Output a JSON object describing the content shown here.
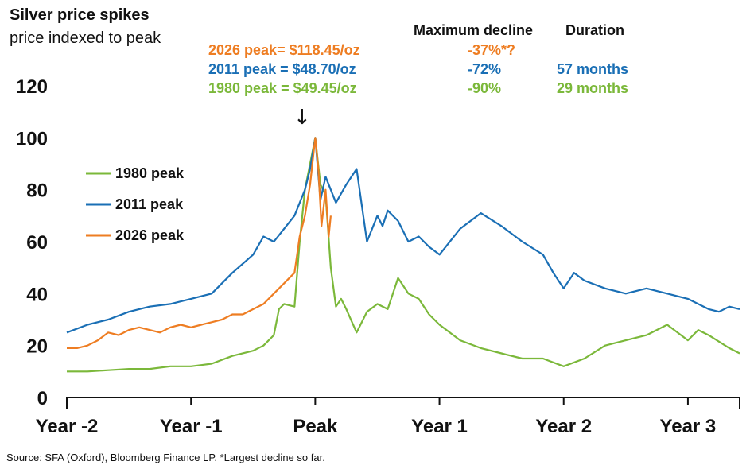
{
  "chart_data": {
    "type": "line",
    "title": "Silver price spikes",
    "subtitle": "price indexed to peak",
    "xlabel": "",
    "ylabel": "",
    "ylim": [
      0,
      120
    ],
    "xlim": [
      -24,
      41
    ],
    "x_unit": "months from peak",
    "y_ticks": [
      "0",
      "20",
      "40",
      "60",
      "80",
      "100",
      "120"
    ],
    "x_ticks": [
      {
        "label": "Year -2",
        "month": -24
      },
      {
        "label": "Year -1",
        "month": -12
      },
      {
        "label": "Peak",
        "month": 0
      },
      {
        "label": "Year 1",
        "month": 12
      },
      {
        "label": "Year 2",
        "month": 24
      },
      {
        "label": "Year 3",
        "month": 36
      }
    ],
    "grid": false,
    "legend": {
      "placement": "left",
      "entries": [
        "1980 peak",
        "2011 peak",
        "2026 peak"
      ]
    },
    "table_headers": {
      "decline": "Maximum decline",
      "duration": "Duration"
    },
    "peak_rows": [
      {
        "label": "2026 peak=  $118.45/oz",
        "decline": "-37%*?",
        "duration": "",
        "color": "#ee7d22"
      },
      {
        "label": "2011 peak = $48.70/oz",
        "decline": "-72%",
        "duration": "57 months",
        "color": "#1a6fb5"
      },
      {
        "label": "1980 peak = $49.45/oz",
        "decline": "-90%",
        "duration": "29 months",
        "color": "#7bb83a"
      }
    ],
    "annotation": "↓",
    "source": "Source: SFA (Oxford), Bloomberg Finance LP. *Largest decline so far.",
    "series": [
      {
        "name": "1980 peak",
        "color": "#7bb83a",
        "x": [
          -24,
          -22,
          -20,
          -18,
          -16,
          -14,
          -12,
          -10,
          -8,
          -6,
          -5,
          -4,
          -3.5,
          -3,
          -2,
          -1.5,
          -1,
          -0.5,
          0,
          0.5,
          1,
          1.5,
          2,
          2.5,
          3,
          4,
          5,
          6,
          7,
          8,
          9,
          10,
          11,
          12,
          14,
          16,
          18,
          20,
          22,
          24,
          26,
          28,
          30,
          32,
          34,
          36,
          37,
          38,
          40,
          41
        ],
        "y": [
          10,
          10,
          10.5,
          11,
          11,
          12,
          12,
          13,
          16,
          18,
          20,
          24,
          34,
          36,
          35,
          60,
          80,
          90,
          100,
          82,
          78,
          50,
          35,
          38,
          34,
          25,
          33,
          36,
          34,
          46,
          40,
          38,
          32,
          28,
          22,
          19,
          17,
          15,
          15,
          12,
          15,
          20,
          22,
          24,
          28,
          22,
          26,
          24,
          19,
          17
        ]
      },
      {
        "name": "2011 peak",
        "color": "#1a6fb5",
        "x": [
          -24,
          -22,
          -20,
          -18,
          -16,
          -14,
          -12,
          -10,
          -8,
          -6,
          -5,
          -4,
          -3,
          -2,
          -1,
          -0.5,
          0,
          0.5,
          1,
          2,
          3,
          4,
          5,
          6,
          6.5,
          7,
          8,
          9,
          10,
          11,
          12,
          14,
          16,
          18,
          20,
          22,
          23,
          24,
          25,
          26,
          28,
          30,
          32,
          34,
          36,
          38,
          39,
          40,
          41
        ],
        "y": [
          25,
          28,
          30,
          33,
          35,
          36,
          38,
          40,
          48,
          55,
          62,
          60,
          65,
          70,
          80,
          88,
          100,
          76,
          85,
          75,
          82,
          88,
          60,
          70,
          66,
          72,
          68,
          60,
          62,
          58,
          55,
          65,
          71,
          66,
          60,
          55,
          48,
          42,
          48,
          45,
          42,
          40,
          42,
          40,
          38,
          34,
          33,
          35,
          34
        ]
      },
      {
        "name": "2026 peak",
        "color": "#ee7d22",
        "x": [
          -24,
          -23,
          -22,
          -21,
          -20,
          -19,
          -18,
          -17,
          -16,
          -15,
          -14,
          -13,
          -12,
          -11,
          -10,
          -9,
          -8,
          -7,
          -6,
          -5,
          -4,
          -3,
          -2.5,
          -2,
          -1.5,
          -1,
          -0.5,
          0,
          0.3,
          0.6,
          1,
          1.3,
          1.5
        ],
        "y": [
          19,
          19,
          20,
          22,
          25,
          24,
          26,
          27,
          26,
          25,
          27,
          28,
          27,
          28,
          29,
          30,
          32,
          32,
          34,
          36,
          40,
          44,
          46,
          48,
          62,
          70,
          82,
          100,
          88,
          66,
          80,
          62,
          70
        ]
      }
    ]
  }
}
